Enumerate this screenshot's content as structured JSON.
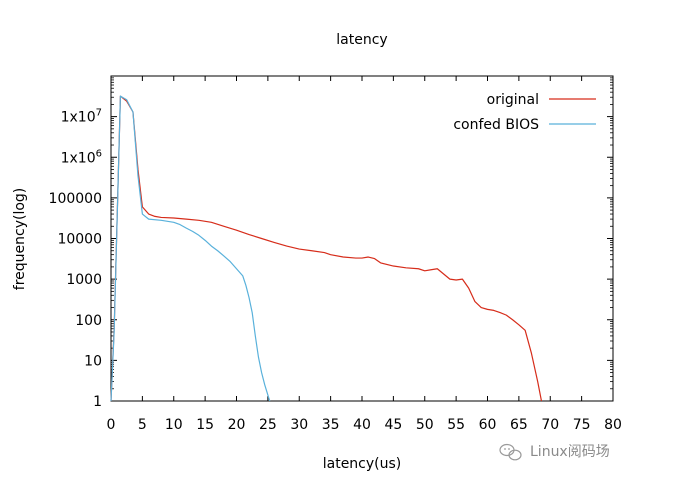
{
  "chart_data": {
    "type": "line",
    "title": "latency",
    "xlabel": "latency(us)",
    "ylabel": "frequency(log)",
    "xlim": [
      0,
      80
    ],
    "ylim": [
      1,
      100000000
    ],
    "yscale": "log",
    "grid": false,
    "legend_position": "top-right",
    "x_ticks": [
      0,
      5,
      10,
      15,
      20,
      25,
      30,
      35,
      40,
      45,
      50,
      55,
      60,
      65,
      70,
      75,
      80
    ],
    "y_ticks": [
      {
        "value": 1,
        "label": "1"
      },
      {
        "value": 10,
        "label": "10"
      },
      {
        "value": 100,
        "label": "100"
      },
      {
        "value": 1000,
        "label": "1000"
      },
      {
        "value": 10000,
        "label": "10000"
      },
      {
        "value": 100000,
        "label": "100000"
      },
      {
        "value": 1000000,
        "label": "1x10^6"
      },
      {
        "value": 10000000,
        "label": "1x10^7"
      }
    ],
    "series": [
      {
        "name": "original",
        "color": "#d62c1a",
        "points": [
          [
            0,
            1
          ],
          [
            0.5,
            60
          ],
          [
            1.5,
            32000000
          ],
          [
            2.5,
            24000000
          ],
          [
            3.5,
            13000000
          ],
          [
            4.3,
            500000
          ],
          [
            5,
            60000
          ],
          [
            6,
            40000
          ],
          [
            7,
            35000
          ],
          [
            8,
            33000
          ],
          [
            10,
            32000
          ],
          [
            12,
            30000
          ],
          [
            14,
            28000
          ],
          [
            16,
            25000
          ],
          [
            18,
            20000
          ],
          [
            20,
            16000
          ],
          [
            22,
            12500
          ],
          [
            24,
            10000
          ],
          [
            26,
            8000
          ],
          [
            28,
            6500
          ],
          [
            30,
            5500
          ],
          [
            32,
            5000
          ],
          [
            34,
            4500
          ],
          [
            35,
            4000
          ],
          [
            37,
            3500
          ],
          [
            39,
            3300
          ],
          [
            40,
            3300
          ],
          [
            41,
            3500
          ],
          [
            42,
            3200
          ],
          [
            43,
            2500
          ],
          [
            45,
            2100
          ],
          [
            47,
            1900
          ],
          [
            49,
            1800
          ],
          [
            50,
            1600
          ],
          [
            51,
            1700
          ],
          [
            52,
            1800
          ],
          [
            54,
            1000
          ],
          [
            55,
            950
          ],
          [
            56,
            1000
          ],
          [
            57,
            600
          ],
          [
            58,
            280
          ],
          [
            59,
            200
          ],
          [
            60,
            180
          ],
          [
            61,
            170
          ],
          [
            62,
            150
          ],
          [
            63,
            130
          ],
          [
            64,
            100
          ],
          [
            65,
            75
          ],
          [
            66,
            55
          ],
          [
            67,
            15
          ],
          [
            68,
            3
          ],
          [
            68.6,
            1
          ]
        ]
      },
      {
        "name": "confed BIOS",
        "color": "#59b1db",
        "points": [
          [
            0,
            1
          ],
          [
            0.5,
            50
          ],
          [
            1.5,
            32000000
          ],
          [
            2.5,
            26000000
          ],
          [
            3.5,
            13000000
          ],
          [
            4.3,
            350000
          ],
          [
            5,
            40000
          ],
          [
            6,
            30000
          ],
          [
            8,
            28000
          ],
          [
            10,
            25000
          ],
          [
            11,
            22000
          ],
          [
            12,
            18000
          ],
          [
            13,
            15000
          ],
          [
            14,
            12000
          ],
          [
            15,
            9000
          ],
          [
            16,
            6500
          ],
          [
            17,
            5000
          ],
          [
            18,
            3700
          ],
          [
            19,
            2700
          ],
          [
            20,
            1800
          ],
          [
            21,
            1200
          ],
          [
            21.5,
            700
          ],
          [
            22,
            350
          ],
          [
            22.5,
            150
          ],
          [
            23,
            40
          ],
          [
            23.5,
            12
          ],
          [
            24,
            5
          ],
          [
            24.5,
            2.5
          ],
          [
            25,
            1.4
          ],
          [
            25.3,
            1
          ]
        ]
      }
    ]
  },
  "watermark": {
    "icon": "wechat-icon",
    "text": "Linux阅码场"
  }
}
